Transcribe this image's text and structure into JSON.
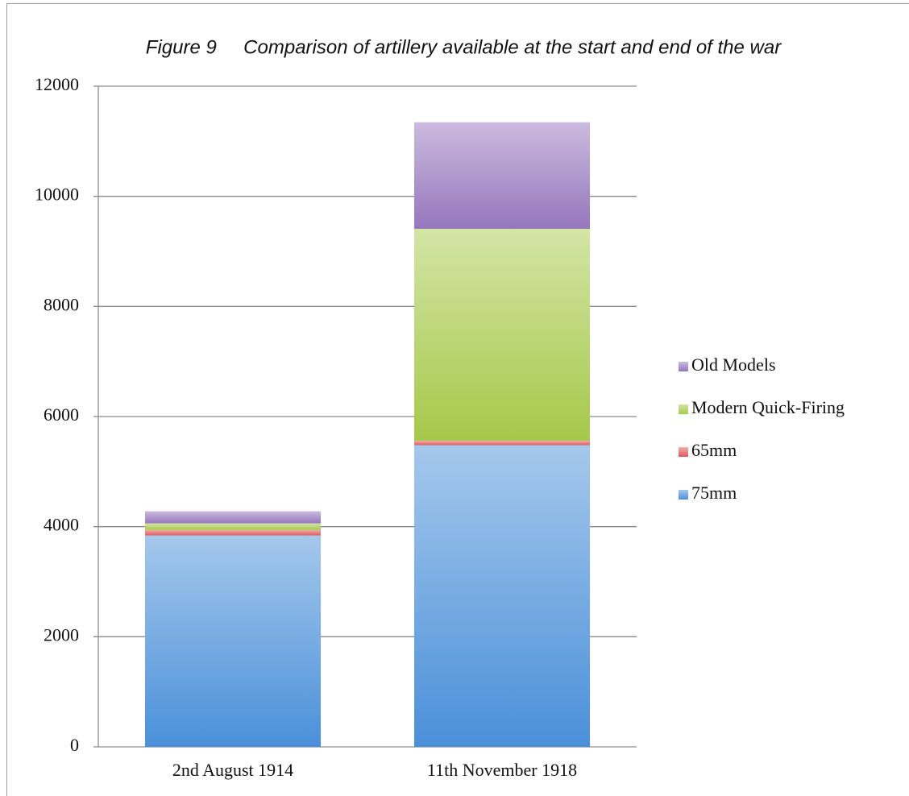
{
  "chart_data": {
    "type": "stacked_bar",
    "title": "Figure 9     Comparison of artillery available at the start and end of the war",
    "categories": [
      "2nd August 1914",
      "11th November 1918"
    ],
    "series": [
      {
        "name": "75mm",
        "color": "#4a90d9",
        "values": [
          3840,
          5480
        ]
      },
      {
        "name": "65mm",
        "color": "#e05a5a",
        "values": [
          100,
          80
        ]
      },
      {
        "name": "Modern Quick-Firing",
        "color": "#a6c94a",
        "values": [
          120,
          3850
        ]
      },
      {
        "name": "Old Models",
        "color": "#9677bd",
        "values": [
          220,
          1935
        ]
      }
    ],
    "ylim": [
      0,
      12000
    ],
    "yticks": [
      0,
      2000,
      4000,
      6000,
      8000,
      10000,
      12000
    ],
    "grid": true,
    "legend": "right"
  }
}
